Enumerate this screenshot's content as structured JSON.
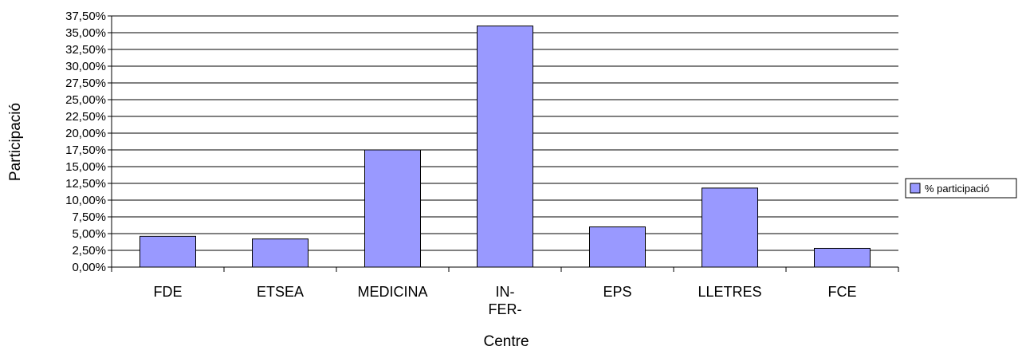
{
  "chart_data": {
    "type": "bar",
    "title": "",
    "xlabel": "Centre",
    "ylabel": "Participació",
    "categories": [
      [
        "FDE"
      ],
      [
        "ETSEA"
      ],
      [
        "MEDICINA"
      ],
      [
        "IN-",
        "FER-"
      ],
      [
        "EPS"
      ],
      [
        "LLETRES"
      ],
      [
        "FCE"
      ]
    ],
    "series": [
      {
        "name": "% participació",
        "values": [
          4.6,
          4.2,
          17.5,
          36.0,
          6.0,
          11.8,
          2.8
        ]
      }
    ],
    "ylim": [
      0,
      37.5
    ],
    "yticks": [
      "0,00%",
      "2,50%",
      "5,00%",
      "7,50%",
      "10,00%",
      "12,50%",
      "15,00%",
      "17,50%",
      "20,00%",
      "22,50%",
      "25,00%",
      "27,50%",
      "30,00%",
      "32,50%",
      "35,00%",
      "37,50%"
    ],
    "grid": true,
    "legend_position": "right",
    "colors": {
      "bar": "#9999ff",
      "bar_stroke": "#000000",
      "grid": "#000000"
    }
  }
}
